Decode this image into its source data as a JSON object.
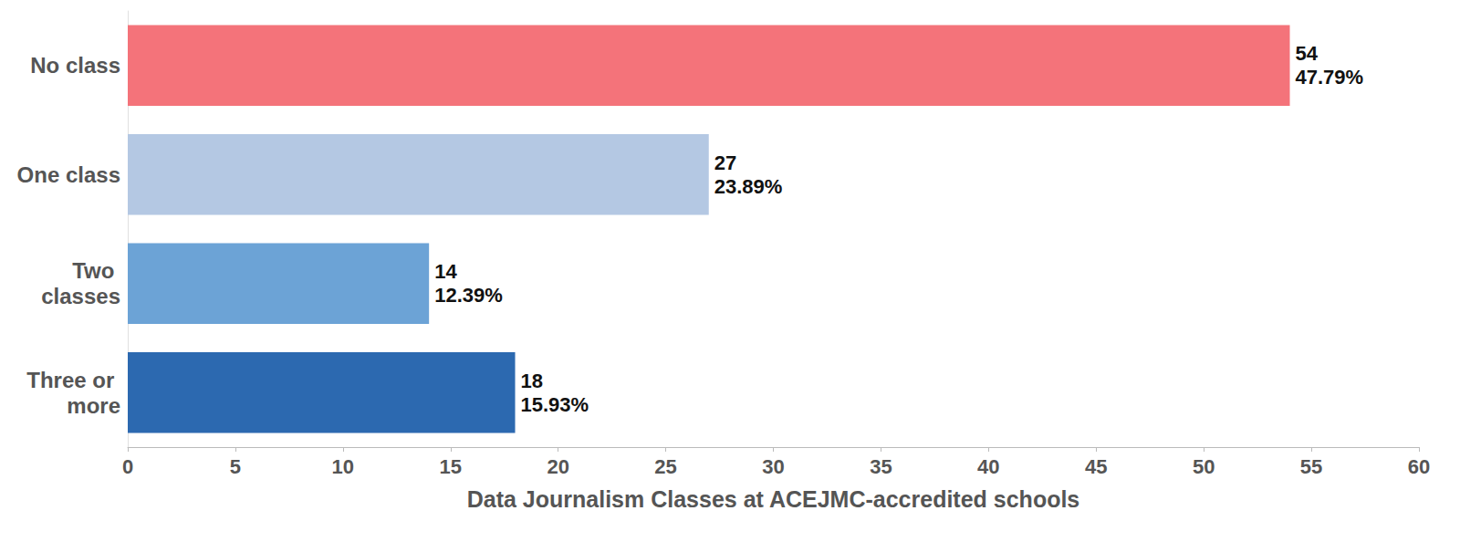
{
  "chart_data": {
    "type": "bar",
    "orientation": "horizontal",
    "x_label": "Data Journalism Classes at ACEJMC-accredited schools",
    "categories": [
      "No class",
      "One class",
      "Two classes",
      "Three or more"
    ],
    "values": [
      54,
      27,
      14,
      18
    ],
    "value_labels": [
      "54\n47.79%",
      "27\n23.89%",
      "14\n12.39%",
      "18\n15.93%"
    ],
    "colors": [
      "#f4737a",
      "#b4c8e3",
      "#6ca3d6",
      "#2c69b0"
    ],
    "xlim": [
      0,
      60
    ],
    "xticks": [
      0,
      5,
      10,
      15,
      20,
      25,
      30,
      35,
      40,
      45,
      50,
      55,
      60
    ],
    "grid": false,
    "data_labels": true
  }
}
